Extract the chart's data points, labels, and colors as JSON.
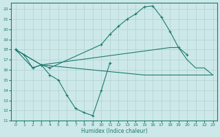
{
  "bg_color": "#cde8e9",
  "grid_color": "#b0d0d2",
  "line_color": "#1a7a6e",
  "xlabel": "Humidex (Indice chaleur)",
  "xlim": [
    -0.5,
    23.5
  ],
  "ylim": [
    11,
    22.6
  ],
  "yticks": [
    11,
    12,
    13,
    14,
    15,
    16,
    17,
    18,
    19,
    20,
    21,
    22
  ],
  "xticks": [
    0,
    1,
    2,
    3,
    4,
    5,
    6,
    7,
    8,
    9,
    10,
    11,
    12,
    13,
    14,
    15,
    16,
    17,
    18,
    19,
    20,
    21,
    22,
    23
  ],
  "line1_x": [
    0,
    1,
    2,
    3,
    4,
    5,
    6,
    7,
    8,
    9,
    10,
    11
  ],
  "line1_y": [
    18.0,
    17.5,
    16.2,
    16.5,
    15.5,
    15.0,
    13.5,
    12.2,
    11.8,
    11.5,
    14.0,
    16.7
  ],
  "line2_x": [
    0,
    2,
    3,
    4,
    10,
    11,
    12,
    13,
    14,
    15,
    16,
    17,
    18,
    19,
    20
  ],
  "line2_y": [
    18.0,
    16.2,
    16.5,
    16.2,
    18.5,
    19.5,
    20.3,
    21.0,
    21.5,
    22.2,
    22.3,
    21.2,
    19.8,
    18.2,
    17.5
  ],
  "line3_x": [
    0,
    3,
    15,
    22,
    23
  ],
  "line3_y": [
    18.0,
    16.5,
    15.5,
    15.5,
    15.5
  ],
  "line4_x": [
    0,
    3,
    18,
    19,
    20,
    21,
    22,
    23
  ],
  "line4_y": [
    18.0,
    16.5,
    18.2,
    18.2,
    17.0,
    16.2,
    16.2,
    15.5
  ]
}
